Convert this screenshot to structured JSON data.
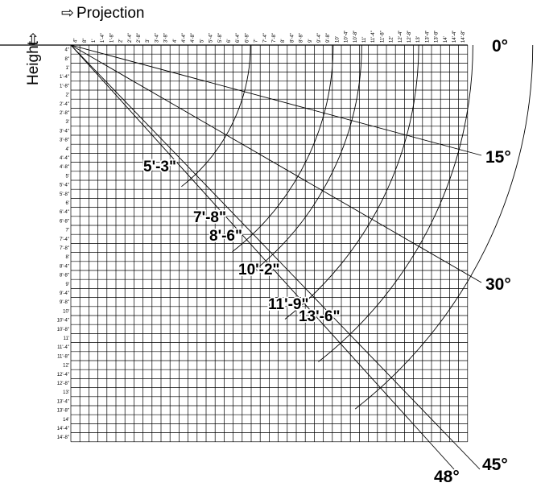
{
  "header": {
    "projection_label": "Projection",
    "height_label": "Height",
    "arrow_glyph": "⇨"
  },
  "grid": {
    "columns": [
      "4\"",
      "8\"",
      "1'",
      "1'-4\"",
      "1'-8\"",
      "2'",
      "2'-4\"",
      "2'-8\"",
      "3'",
      "3'-4\"",
      "3'-8\"",
      "4'",
      "4'-4\"",
      "4'-8\"",
      "5'",
      "5'-4\"",
      "5'-8\"",
      "6'",
      "6'-4\"",
      "6'-8\"",
      "7'",
      "7'-4\"",
      "7'-8\"",
      "8'",
      "8'-4\"",
      "8'-8\"",
      "9'",
      "9'-4\"",
      "9'-8\"",
      "10'",
      "10'-4\"",
      "10'-8\"",
      "11'",
      "11'-4\"",
      "11'-8\"",
      "12'",
      "12'-4\"",
      "12'-8\"",
      "13'",
      "13'-4\"",
      "13'-8\"",
      "14'",
      "14'-4\"",
      "14'-8\""
    ],
    "rows": [
      "4\"",
      "8\"",
      "1'",
      "1'-4\"",
      "1'-8\"",
      "2'",
      "2'-4\"",
      "2'-8\"",
      "3'",
      "3'-4\"",
      "3'-8\"",
      "4'",
      "4'-4\"",
      "4'-8\"",
      "5'",
      "5'-4\"",
      "5'-8\"",
      "6'",
      "6'-4\"",
      "6'-8\"",
      "7'",
      "7'-4\"",
      "7'-8\"",
      "8'",
      "8'-4\"",
      "8'-8\"",
      "9'",
      "9'-4\"",
      "9'-8\"",
      "10'",
      "10'-4\"",
      "10'-8\"",
      "11'",
      "11'-4\"",
      "11'-8\"",
      "12'",
      "12'-4\"",
      "12'-8\"",
      "13'",
      "13'-4\"",
      "13'-8\"",
      "14'",
      "14'-4\"",
      "14'-8\""
    ]
  },
  "angles": [
    {
      "label": "0°",
      "degrees": 0
    },
    {
      "label": "15°",
      "degrees": 15
    },
    {
      "label": "30°",
      "degrees": 30
    },
    {
      "label": "45°",
      "degrees": 45
    },
    {
      "label": "48°",
      "degrees": 48
    }
  ],
  "distances": [
    {
      "label": "5'-3\"",
      "feet": 5.25
    },
    {
      "label": "7'-8\"",
      "feet": 7.667
    },
    {
      "label": "8'-6\"",
      "feet": 8.5
    },
    {
      "label": "10'-2\"",
      "feet": 10.167
    },
    {
      "label": "11'-9\"",
      "feet": 11.75
    },
    {
      "label": "13'-6\"",
      "feet": 13.5
    }
  ]
}
